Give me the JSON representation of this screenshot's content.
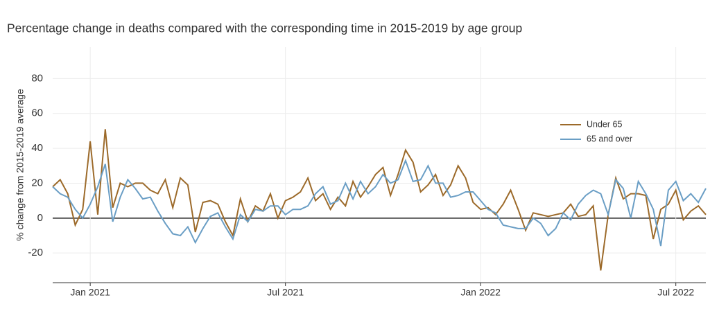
{
  "chart_data": {
    "type": "line",
    "title": "Percentage change in deaths compared with the corresponding time in 2015-2019 by age group",
    "y_label": "% change from 2015-2019 average",
    "categories": [
      null,
      null,
      null,
      null,
      null,
      "Jan 2021",
      null,
      null,
      null,
      null,
      null,
      null,
      null,
      null,
      null,
      null,
      null,
      null,
      null,
      null,
      null,
      null,
      null,
      null,
      null,
      null,
      null,
      null,
      null,
      null,
      null,
      "Jul 2021",
      null,
      null,
      null,
      null,
      null,
      null,
      null,
      null,
      null,
      null,
      null,
      null,
      null,
      null,
      null,
      null,
      null,
      null,
      null,
      null,
      null,
      null,
      null,
      null,
      null,
      "Jan 2022",
      null,
      null,
      null,
      null,
      null,
      null,
      null,
      null,
      null,
      null,
      null,
      null,
      null,
      null,
      null,
      null,
      null,
      null,
      null,
      null,
      null,
      null,
      null,
      null,
      null,
      "Jul 2022",
      null,
      null,
      null,
      null
    ],
    "series": [
      {
        "name": "Under 65",
        "color": "#9c6a2a",
        "values": [
          18,
          22,
          14,
          -4,
          5,
          44,
          2,
          51,
          6,
          20,
          18,
          20,
          20,
          16,
          14,
          22,
          6,
          23,
          19,
          -8,
          9,
          10,
          8,
          -2,
          -10,
          11,
          -2,
          7,
          4,
          14,
          0,
          10,
          12,
          15,
          23,
          10,
          14,
          5,
          12,
          7,
          21,
          12,
          18,
          25,
          29,
          13,
          25,
          39,
          32,
          15,
          19,
          25,
          13,
          19,
          30,
          23,
          9,
          5,
          6,
          2,
          8,
          16,
          5,
          -7,
          3,
          2,
          1,
          2,
          3,
          8,
          1,
          2,
          7,
          -30,
          2,
          23,
          11,
          14,
          14,
          13,
          -12,
          5,
          8,
          16,
          -1,
          4,
          7,
          2
        ]
      },
      {
        "name": "65 and over",
        "color": "#6a9ec5",
        "values": [
          18,
          14,
          12,
          5,
          0,
          8,
          18,
          31,
          -2,
          12,
          22,
          17,
          11,
          12,
          4,
          -3,
          -9,
          -10,
          -5,
          -14,
          -6,
          1,
          3,
          -5,
          -12,
          2,
          -2,
          5,
          4,
          7,
          7,
          2,
          5,
          5,
          7,
          14,
          18,
          8,
          10,
          20,
          11,
          21,
          14,
          18,
          25,
          20,
          22,
          33,
          21,
          22,
          30,
          20,
          20,
          12,
          13,
          15,
          15,
          10,
          5,
          3,
          -4,
          -5,
          -6,
          -6,
          0,
          -3,
          -10,
          -6,
          3,
          -1,
          8,
          13,
          16,
          14,
          2,
          22,
          17,
          0,
          21,
          14,
          5,
          -16,
          16,
          21,
          10,
          14,
          9,
          17
        ]
      }
    ],
    "ylim": [
      -37,
      98
    ],
    "yticks": [
      -20,
      0,
      20,
      40,
      60,
      80
    ],
    "grid": true,
    "legend": "upper right"
  }
}
